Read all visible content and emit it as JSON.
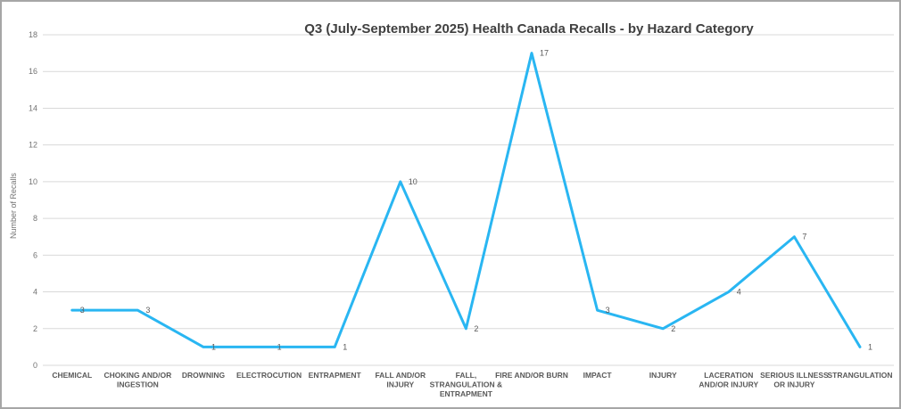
{
  "chart_data": {
    "type": "line",
    "title": "Q3 (July-September 2025) Health Canada Recalls - by Hazard Category",
    "xlabel": "",
    "ylabel": "Number of Recalls",
    "categories": [
      "CHEMICAL",
      "CHOKING AND/OR INGESTION",
      "DROWNING",
      "ELECTROCUTION",
      "ENTRAPMENT",
      "FALL AND/OR INJURY",
      "FALL, STRANGULATION & ENTRAPMENT",
      "FIRE AND/OR BURN",
      "IMPACT",
      "INJURY",
      "LACERATION AND/OR INJURY",
      "SERIOUS ILLNESS OR INJURY",
      "STRANGULATION"
    ],
    "category_label_lines": [
      [
        "CHEMICAL"
      ],
      [
        "CHOKING AND/OR",
        "INGESTION"
      ],
      [
        "DROWNING"
      ],
      [
        "ELECTROCUTION"
      ],
      [
        "ENTRAPMENT"
      ],
      [
        "FALL AND/OR",
        "INJURY"
      ],
      [
        "FALL,",
        "STRANGULATION &",
        "ENTRAPMENT"
      ],
      [
        "FIRE AND/OR BURN"
      ],
      [
        "IMPACT"
      ],
      [
        "INJURY"
      ],
      [
        "LACERATION",
        "AND/OR INJURY"
      ],
      [
        "SERIOUS ILLNESS",
        "OR INJURY"
      ],
      [
        "STRANGULATION"
      ]
    ],
    "values": [
      3,
      3,
      1,
      1,
      1,
      10,
      2,
      17,
      3,
      2,
      4,
      7,
      1
    ],
    "data_labels": [
      "3",
      "3",
      "1",
      "1",
      "1",
      "10",
      "2",
      "17",
      "3",
      "2",
      "4",
      "7",
      "1"
    ],
    "ylim": [
      0,
      18
    ],
    "ytick_step": 2,
    "ytick_labels": [
      "0",
      "2",
      "4",
      "6",
      "8",
      "10",
      "12",
      "14",
      "16",
      "18"
    ],
    "grid": true,
    "legend_position": "none",
    "colors": {
      "line": "#29B6F2",
      "grid": "#D9D9D9",
      "title_text": "#404040",
      "axis_text": "#737373",
      "category_text": "#595959",
      "data_label_text": "#595959",
      "frame_border": "#A6A6A6",
      "background": "#FFFFFF"
    }
  }
}
